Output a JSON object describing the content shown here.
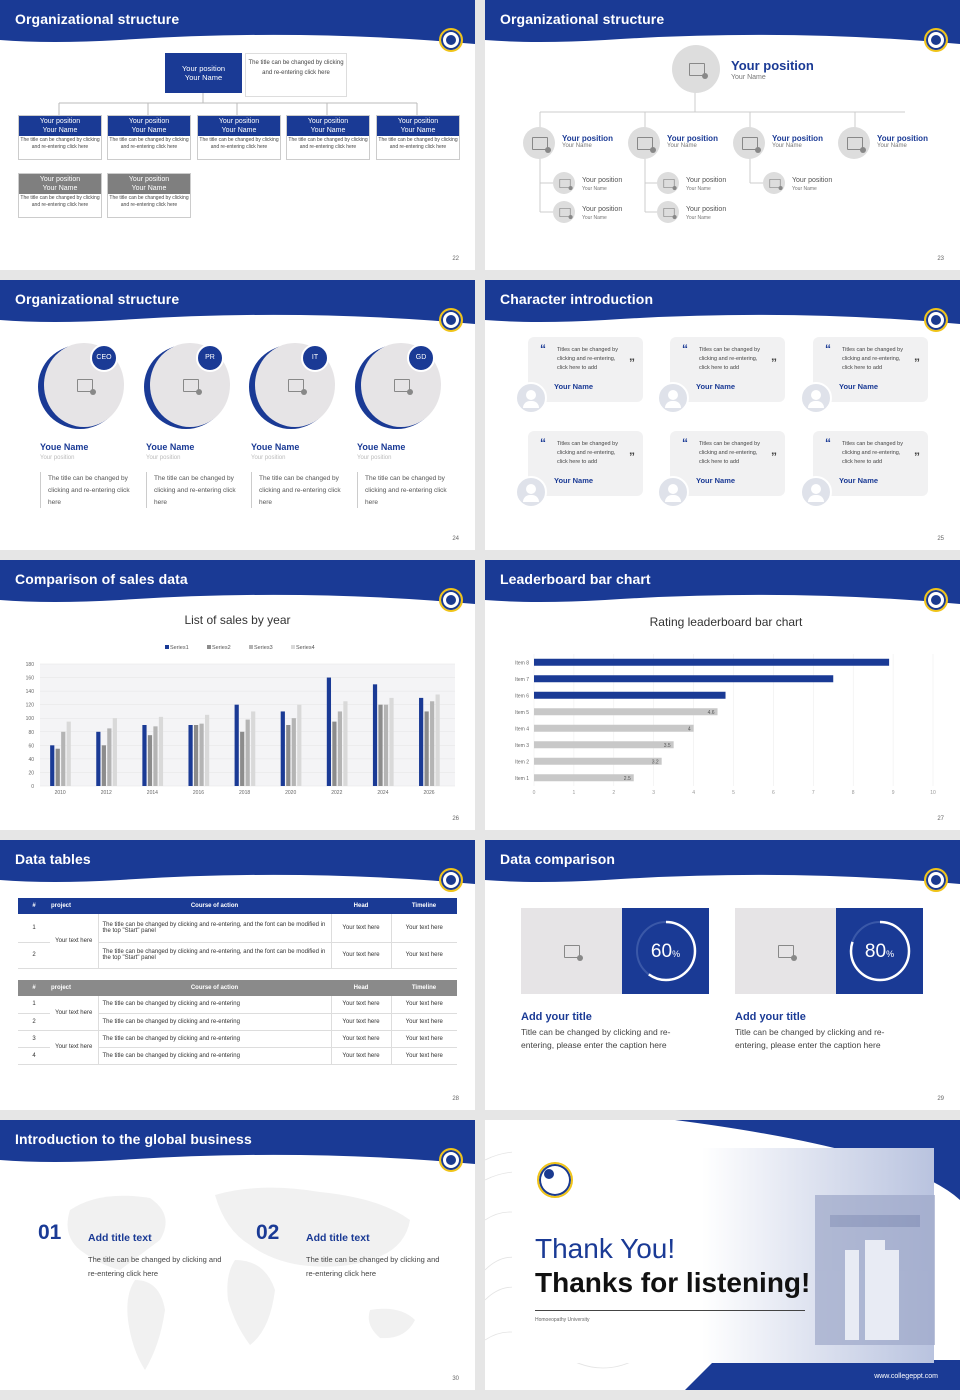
{
  "slides": [
    {
      "title": "Organizational structure",
      "page": "22",
      "top_position": "Your position",
      "top_name": "Your Name",
      "top_desc": "The title can be changed by clicking and re-entering click here",
      "row1": [
        {
          "pos": "Your position",
          "name": "Your Name",
          "desc": "The title can be changed by clicking and re-entering click here"
        },
        {
          "pos": "Your position",
          "name": "Your Name",
          "desc": "The title can be changed by clicking and re-entering click here"
        },
        {
          "pos": "Your position",
          "name": "Your Name",
          "desc": "The title can be changed by clicking and re-entering click here"
        },
        {
          "pos": "Your position",
          "name": "Your Name",
          "desc": "The title can be changed by clicking and re-entering click here"
        },
        {
          "pos": "Your position",
          "name": "Your Name",
          "desc": "The title can be changed by clicking and re-entering click here"
        }
      ],
      "row2": [
        {
          "pos": "Your position",
          "name": "Your Name",
          "desc": "The title can be changed by clicking and re-entering click here"
        },
        {
          "pos": "Your position",
          "name": "Your Name",
          "desc": "The title can be changed by clicking and re-entering click here"
        }
      ]
    },
    {
      "title": "Organizational structure",
      "page": "23",
      "top_position": "Your position",
      "top_name": "Your Name",
      "level2": [
        {
          "pos": "Your position",
          "name": "Your Name"
        },
        {
          "pos": "Your position",
          "name": "Your Name"
        },
        {
          "pos": "Your position",
          "name": "Your Name"
        },
        {
          "pos": "Your position",
          "name": "Your Name"
        }
      ],
      "level3": [
        {
          "pos": "Your position",
          "name": "Your Name"
        },
        {
          "pos": "Your position",
          "name": "Your Name"
        },
        {
          "pos": "Your position",
          "name": "Your Name"
        },
        {
          "pos": "Your position",
          "name": "Your Name"
        },
        {
          "pos": "Your position",
          "name": "Your Name"
        }
      ]
    },
    {
      "title": "Organizational structure",
      "page": "24",
      "people": [
        {
          "badge": "CEO",
          "name": "Youe Name",
          "pos": "Your position",
          "desc": "The title can be changed by clicking and re-entering click here"
        },
        {
          "badge": "PR",
          "name": "Youe Name",
          "pos": "Your position",
          "desc": "The title can be changed by clicking and re-entering click here"
        },
        {
          "badge": "IT",
          "name": "Youe Name",
          "pos": "Your position",
          "desc": "The title can be changed by clicking and re-entering click here"
        },
        {
          "badge": "GD",
          "name": "Youe Name",
          "pos": "Your position",
          "desc": "The title can be changed by clicking and re-entering click here"
        }
      ]
    },
    {
      "title": "Character introduction",
      "page": "25",
      "quote": "Titles can be changed by clicking and re-entering, click here to add",
      "name": "Your Name"
    },
    {
      "title": "Comparison of sales data",
      "page": "26"
    },
    {
      "title": "Leaderboard bar chart",
      "page": "27"
    },
    {
      "title": "Data tables",
      "page": "28",
      "t1_headers": [
        "#",
        "project",
        "Course of action",
        "Head",
        "Timeline"
      ],
      "t1_rows": [
        {
          "n": "1",
          "act": "The title can be changed by clicking and re-entering, and the font can be modified in the top \"Start\" panel",
          "head": "Your text here",
          "time": "Your text here"
        },
        {
          "n": "2",
          "act": "The title can be changed by clicking and re-entering, and the font can be modified in the top \"Start\" panel",
          "head": "Your text here",
          "time": "Your text here"
        }
      ],
      "t1_project": "Your text here",
      "t2_headers": [
        "#",
        "project",
        "Course of action",
        "Head",
        "Timeline"
      ],
      "t2_rows": [
        {
          "n": "1",
          "act": "The title can be changed by clicking and re-entering",
          "head": "Your text here",
          "time": "Your text here"
        },
        {
          "n": "2",
          "act": "The title can be changed by clicking and re-entering",
          "head": "Your text here",
          "time": "Your text here"
        },
        {
          "n": "3",
          "act": "The title can be changed by clicking and re-entering",
          "head": "Your text here",
          "time": "Your text here"
        },
        {
          "n": "4",
          "act": "The title can be changed by clicking and re-entering",
          "head": "Your text here",
          "time": "Your text here"
        }
      ],
      "t2_project_a": "Your text here",
      "t2_project_b": "Your text here"
    },
    {
      "title": "Data comparison",
      "page": "29",
      "cards": [
        {
          "pct": "60",
          "unit": "%",
          "title": "Add your title",
          "desc": "Title can be changed by clicking and re-entering, please enter the caption here"
        },
        {
          "pct": "80",
          "unit": "%",
          "title": "Add your title",
          "desc": "Title can be changed by clicking and re-entering, please enter the caption here"
        }
      ]
    },
    {
      "title": "Introduction to the global business",
      "page": "30",
      "items": [
        {
          "num": "01",
          "title": "Add title text",
          "desc": "The title can be changed by clicking and re-entering click here"
        },
        {
          "num": "02",
          "title": "Add title text",
          "desc": "The title can be changed by clicking and re-entering click here"
        }
      ]
    },
    {
      "thanks1": "Thank You!",
      "thanks2": "Thanks for listening!",
      "university": "Homoeopathy University",
      "website": "www.collegeppt.com"
    }
  ],
  "chart_data": [
    {
      "type": "bar",
      "title": "List of sales by year",
      "categories": [
        "2010",
        "2012",
        "2014",
        "2016",
        "2018",
        "2020",
        "2022",
        "2024",
        "2026"
      ],
      "series": [
        {
          "name": "Series1",
          "color": "#1a3a95",
          "values": [
            60,
            80,
            90,
            90,
            120,
            110,
            160,
            150,
            130
          ]
        },
        {
          "name": "Series2",
          "color": "#8c8c8c",
          "values": [
            55,
            60,
            75,
            90,
            80,
            90,
            95,
            120,
            110
          ]
        },
        {
          "name": "Series3",
          "color": "#b4b4b4",
          "values": [
            80,
            85,
            88,
            92,
            98,
            100,
            110,
            120,
            125
          ]
        },
        {
          "name": "Series4",
          "color": "#d9d9d9",
          "values": [
            95,
            100,
            102,
            105,
            110,
            120,
            125,
            130,
            135
          ]
        }
      ],
      "yticks": [
        "0",
        "20",
        "40",
        "60",
        "80",
        "100",
        "120",
        "140",
        "160",
        "180"
      ],
      "ylim": [
        0,
        180
      ],
      "legend": "top"
    },
    {
      "type": "bar",
      "orientation": "horizontal",
      "title": "Rating leaderboard bar chart",
      "categories": [
        "Item 1",
        "Item 2",
        "Item 3",
        "Item 4",
        "Item 5",
        "Item 6",
        "Item 7",
        "Item 8"
      ],
      "values": [
        2.5,
        3.2,
        3.5,
        4,
        4.6,
        4.8,
        7.5,
        8.9
      ],
      "labels": [
        "2.5",
        "3.2",
        "3.5",
        "4",
        "4.6",
        "",
        "",
        ""
      ],
      "colors": [
        "#c8c8c8",
        "#c8c8c8",
        "#c8c8c8",
        "#c8c8c8",
        "#c8c8c8",
        "#1a3a95",
        "#1a3a95",
        "#1a3a95"
      ],
      "xticks": [
        "0",
        "1",
        "2",
        "3",
        "4",
        "5",
        "6",
        "7",
        "8",
        "9",
        "10"
      ],
      "xlim": [
        0,
        10
      ]
    }
  ]
}
